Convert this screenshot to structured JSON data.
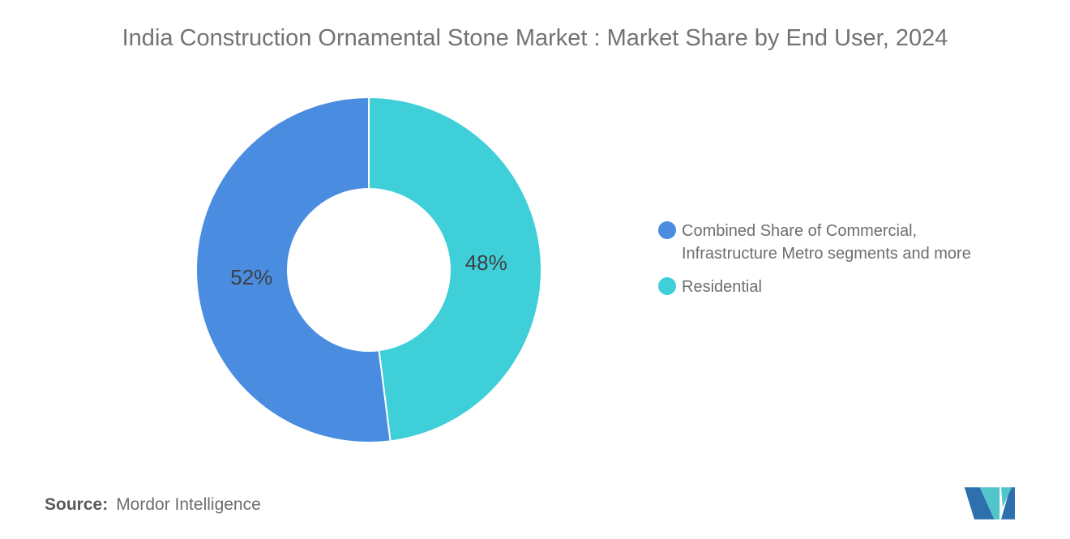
{
  "title": "India Construction Ornamental Stone Market : Market Share by End User, 2024",
  "chart_data": {
    "type": "pie",
    "subtype": "donut",
    "title": "India Construction Ornamental Stone Market : Market Share by End User, 2024",
    "inner_radius_ratio": 0.47,
    "start_angle_deg": 0,
    "arrangement": "first series fills left half counter-clockwise from top; second series fills right half",
    "legend_position": "right",
    "grid": false,
    "label_color": "#3d4043",
    "slice_border_color": "#ffffff",
    "series": [
      {
        "name": "Combined Share of Commercial, Infrastructure Metro segments and more",
        "value": 52,
        "label": "52%",
        "color": "#4a8ce0"
      },
      {
        "name": "Residential",
        "value": 48,
        "label": "48%",
        "color": "#3ecfd8"
      }
    ]
  },
  "source": {
    "label": "Source:",
    "value": "Mordor Intelligence"
  },
  "logo": {
    "name": "mordor-intelligence-logo",
    "blue": "#2d70ad",
    "teal": "#52c5cb"
  }
}
